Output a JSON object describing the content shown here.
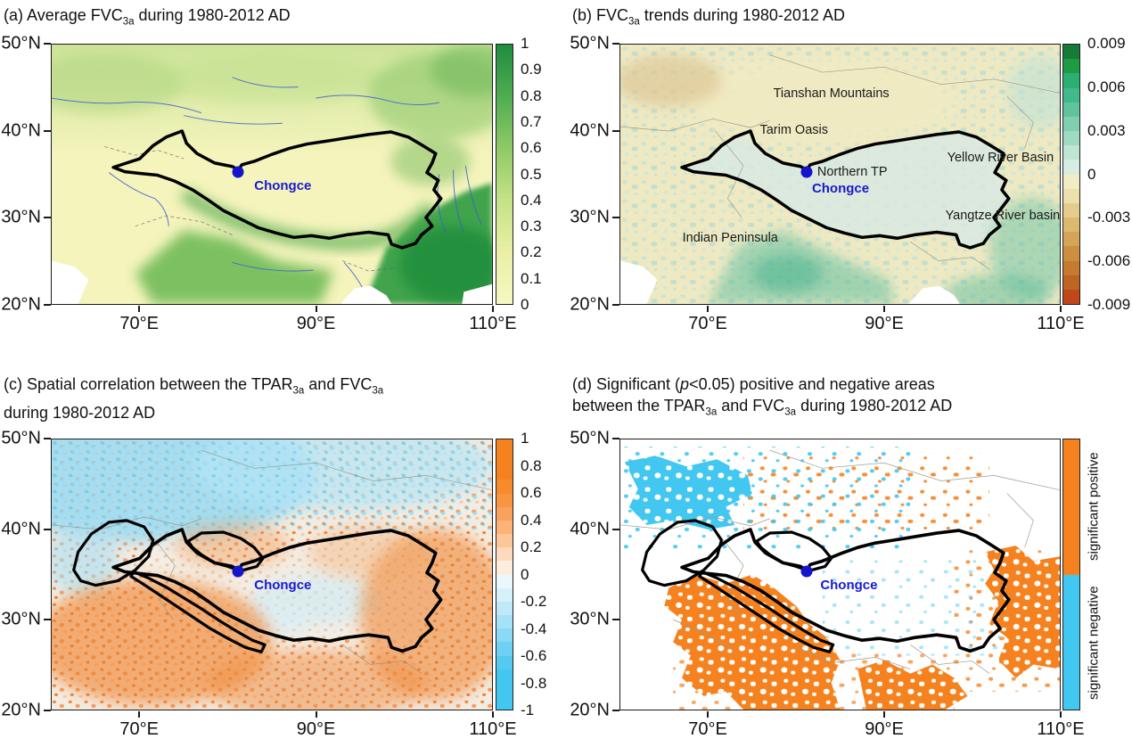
{
  "colors": {
    "marker_blue": "#1414CC",
    "label_blue": "#1A1ACC",
    "outline_black": "#000000",
    "sig_positive_orange": "#F6821F",
    "sig_negative_cyan": "#41C7F0",
    "cbar_a_stops": [
      "#1E8C3E",
      "#4FAD51",
      "#8FC967",
      "#C4E286",
      "#E9F0A5",
      "#F7F7C2"
    ],
    "cbar_b_segments": [
      "#167A38",
      "#1E9C44",
      "#2EAF72",
      "#41B98A",
      "#5FC49D",
      "#7FCFB0",
      "#9FDAC2",
      "#BFE5D4",
      "#D8EDE2",
      "#F0ECC4",
      "#EDE0AC",
      "#E5CC8C",
      "#DDB970",
      "#D4A458",
      "#CC8F42",
      "#C57A30",
      "#BE6524",
      "#C04818"
    ],
    "cbar_c_segments": [
      "#F6821F",
      "#F6821F",
      "#F6821F",
      "#F78A2D",
      "#F8953F",
      "#F9A259",
      "#FBB377",
      "#FCC698",
      "#FDDABB",
      "#FEEDDD",
      "#EAF7FD",
      "#D6F1FB",
      "#BFE9F9",
      "#A5E1F7",
      "#8AD9F5",
      "#6ED0F3",
      "#55CAF1",
      "#41C7F0",
      "#41C7F0",
      "#41C7F0"
    ],
    "cbar_d_segments": [
      "#F6821F",
      "#41C7F0"
    ]
  },
  "panels": {
    "a": {
      "title_parts": [
        {
          "t": "(a) Average FVC"
        },
        {
          "t": "3a",
          "sub": true
        },
        {
          "t": " during 1980-2012 AD"
        }
      ],
      "y_ticks": [
        "50°N",
        "40°N",
        "30°N",
        "20°N"
      ],
      "x_ticks": [
        "70°E",
        "90°E",
        "110°E"
      ],
      "colorbar_ticks": [
        "1",
        "0.9",
        "0.8",
        "0.7",
        "0.6",
        "0.5",
        "0.4",
        "0.3",
        "0.2",
        "0.1",
        "0"
      ],
      "marker_label": "Chongce"
    },
    "b": {
      "title_parts": [
        {
          "t": "(b) FVC"
        },
        {
          "t": "3a",
          "sub": true
        },
        {
          "t": " trends during 1980-2012 AD"
        }
      ],
      "y_ticks": [
        "50°N",
        "40°N",
        "30°N",
        "20°N"
      ],
      "x_ticks": [
        "70°E",
        "90°E",
        "110°E"
      ],
      "colorbar_ticks": [
        "0.009",
        "0.006",
        "0.003",
        "0",
        "-0.003",
        "-0.006",
        "-0.009"
      ],
      "marker_label": "Chongce",
      "annotations": {
        "tianshan": "Tianshan Mountains",
        "tarim": "Tarim Oasis",
        "northern_tp": "Northern TP",
        "yellow_river": "Yellow River Basin",
        "yangtze_river": "Yangtze River basin",
        "indian_peninsula": "Indian Peninsula"
      }
    },
    "c": {
      "title_parts": [
        {
          "t": "(c) Spatial correlation between the TPAR"
        },
        {
          "t": "3a",
          "sub": true
        },
        {
          "t": " and FVC"
        },
        {
          "t": "3a",
          "sub": true
        },
        {
          "br": true
        },
        {
          "t": "during 1980-2012 AD"
        }
      ],
      "y_ticks": [
        "50°N",
        "40°N",
        "30°N",
        "20°N"
      ],
      "x_ticks": [
        "70°E",
        "90°E",
        "110°E"
      ],
      "colorbar_ticks": [
        "1",
        "0.8",
        "0.6",
        "0.4",
        "0.2",
        "0",
        "-0.2",
        "-0.4",
        "-0.6",
        "-0.8",
        "-1"
      ],
      "marker_label": "Chongce"
    },
    "d": {
      "title_parts": [
        {
          "t": "(d) Significant ("
        },
        {
          "t": "p",
          "italic": true
        },
        {
          "t": "<0.05) positive and negative areas"
        },
        {
          "br": true
        },
        {
          "t": "between the TPAR"
        },
        {
          "t": "3a",
          "sub": true
        },
        {
          "t": " and FVC"
        },
        {
          "t": "3a",
          "sub": true
        },
        {
          "t": " during 1980-2012 AD"
        }
      ],
      "y_ticks": [
        "50°N",
        "40°N",
        "30°N",
        "20°N"
      ],
      "x_ticks": [
        "70°E",
        "90°E",
        "110°E"
      ],
      "colorbar_labels": [
        "significant positive",
        "significant negative"
      ],
      "marker_label": "Chongce"
    }
  }
}
